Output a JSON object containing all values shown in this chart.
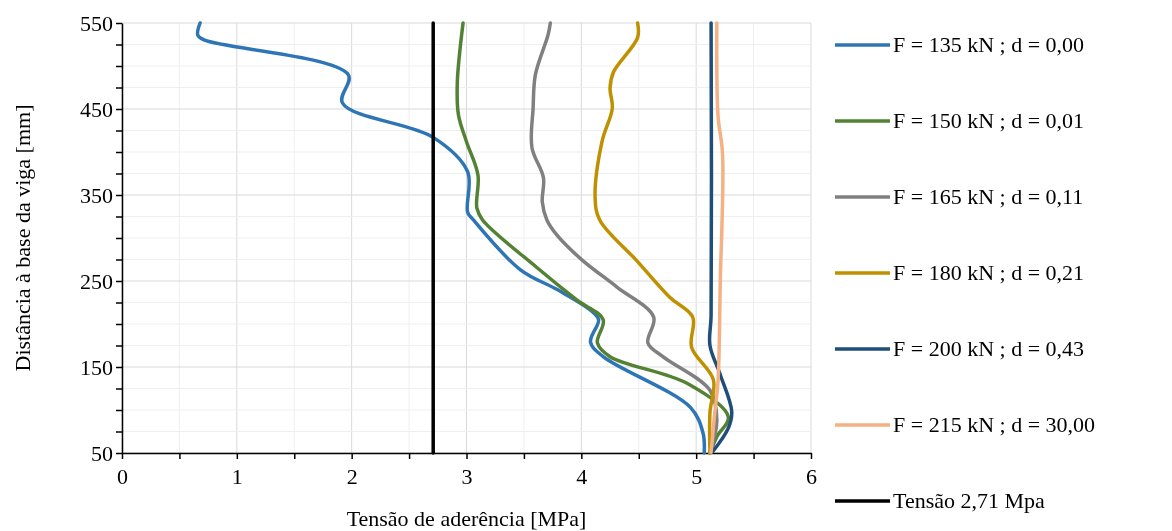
{
  "chart_data": {
    "type": "line",
    "xlabel": "Tensão de aderência [MPa]",
    "ylabel": "Distância à base da viga [mm]",
    "xlim": [
      0,
      6
    ],
    "ylim": [
      50,
      550
    ],
    "xticks": [
      0,
      {
        "value": 0.5,
        "label": null
      },
      1,
      {
        "value": 1.5,
        "label": null
      },
      2,
      {
        "value": 2.5,
        "label": null
      },
      3,
      {
        "value": 3.5,
        "label": null
      },
      4,
      {
        "value": 4.5,
        "label": null
      },
      5,
      {
        "value": 5.5,
        "label": null
      },
      6
    ],
    "yticks": [
      50,
      {
        "value": 75,
        "label": null
      },
      {
        "value": 100,
        "label": null
      },
      {
        "value": 125,
        "label": null
      },
      150,
      {
        "value": 175,
        "label": null
      },
      {
        "value": 200,
        "label": null
      },
      {
        "value": 225,
        "label": null
      },
      250,
      {
        "value": 275,
        "label": null
      },
      {
        "value": 300,
        "label": null
      },
      {
        "value": 325,
        "label": null
      },
      350,
      {
        "value": 375,
        "label": null
      },
      {
        "value": 400,
        "label": null
      },
      {
        "value": 425,
        "label": null
      },
      450,
      {
        "value": 475,
        "label": null
      },
      {
        "value": 500,
        "label": null
      },
      {
        "value": 525,
        "label": null
      },
      550
    ],
    "grid": true,
    "legend": "right",
    "marker": "none",
    "line_style": "solid",
    "series": [
      {
        "name": "F = 135 kN ; d = 0,00",
        "color": "#2e75b6",
        "x": [
          0.68,
          0.66,
          0.72,
          1.97,
          1.92,
          2.71,
          3.01,
          3.01,
          3.06,
          3.47,
          3.79,
          4.08,
          4.15,
          4.08,
          4.19,
          4.95,
          5.06,
          5.07
        ],
        "values": [
          550,
          536,
          530,
          490,
          457,
          417,
          377,
          330,
          321,
          263,
          240,
          216,
          205,
          179,
          162,
          103,
          73,
          50
        ]
      },
      {
        "name": "F = 150 kN ; d = 0,01",
        "color": "#548235",
        "x": [
          2.97,
          2.92,
          2.93,
          3.0,
          3.1,
          3.09,
          3.14,
          3.61,
          3.96,
          4.19,
          4.14,
          4.25,
          4.92,
          5.28,
          5.18,
          5.12
        ],
        "values": [
          550,
          481,
          443,
          412,
          373,
          335,
          321,
          266,
          228,
          205,
          178,
          162,
          131,
          92,
          69,
          50
        ]
      },
      {
        "name": "F = 165 kN ; d = 0,11",
        "color": "#808080",
        "x": [
          3.73,
          3.71,
          3.6,
          3.58,
          3.57,
          3.67,
          3.66,
          3.7,
          3.79,
          4.01,
          4.31,
          4.63,
          4.58,
          4.71,
          5.12,
          5.18,
          5.12
        ],
        "values": [
          550,
          536,
          490,
          451,
          405,
          370,
          342,
          321,
          303,
          274,
          243,
          208,
          178,
          162,
          123,
          88,
          50
        ]
      },
      {
        "name": "F = 180 kN ; d = 0,21",
        "color": "#bf9000",
        "x": [
          4.49,
          4.49,
          4.28,
          4.25,
          4.27,
          4.18,
          4.12,
          4.16,
          4.48,
          4.77,
          4.97,
          4.96,
          5.15,
          5.12,
          5.12
        ],
        "values": [
          550,
          533,
          493,
          474,
          451,
          412,
          347,
          321,
          274,
          231,
          208,
          173,
          135,
          97,
          50
        ]
      },
      {
        "name": "F = 200 kN ; d = 0,43",
        "color": "#1f4e79",
        "x": [
          5.13,
          5.13,
          5.12,
          5.21,
          5.31,
          5.28,
          5.14
        ],
        "values": [
          550,
          210,
          175,
          141,
          98,
          79,
          51
        ]
      },
      {
        "name": "F = 215 kN ; d = 30,00",
        "color": "#f4b183",
        "x": [
          5.18,
          5.19,
          5.23,
          5.21,
          5.19,
          5.16,
          5.13
        ],
        "values": [
          550,
          443,
          397,
          249,
          133,
          94,
          51
        ]
      },
      {
        "name": "Tensão 2,71 Mpa",
        "color": "#000000",
        "x": [
          2.71,
          2.71
        ],
        "values": [
          550,
          50
        ]
      }
    ]
  }
}
